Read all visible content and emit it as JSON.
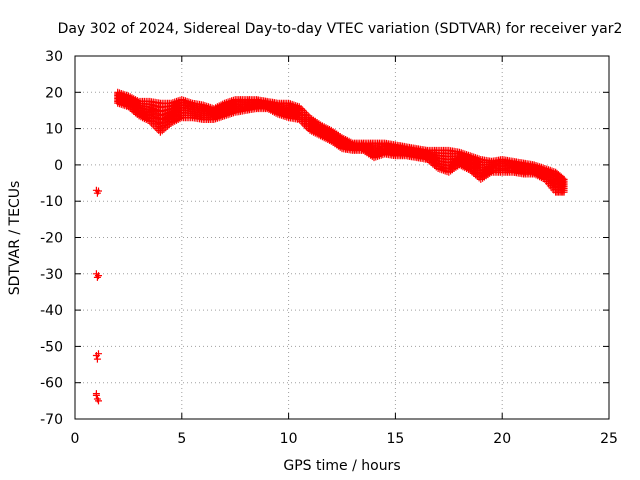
{
  "chart_data": {
    "type": "scatter",
    "title": "Day 302 of 2024, Sidereal Day-to-day VTEC variation (SDTVAR) for receiver yar2",
    "xlabel": "GPS time / hours",
    "ylabel": "SDTVAR / TECUs",
    "xlim": [
      0,
      25
    ],
    "ylim": [
      -70,
      30
    ],
    "x_ticks": [
      0,
      5,
      10,
      15,
      20,
      25
    ],
    "y_ticks": [
      30,
      20,
      10,
      0,
      -10,
      -20,
      -30,
      -40,
      -50,
      -60,
      -70
    ],
    "x_tick_labels": [
      "0",
      "5",
      "10",
      "15",
      "20",
      "25"
    ],
    "y_tick_labels": [
      "30",
      "20",
      "10",
      "0",
      "-10",
      "-20",
      "-30",
      "-40",
      "-50",
      "-60",
      "-70"
    ],
    "grid": true,
    "marker": "plus",
    "marker_color": "#ff0000",
    "series": [
      {
        "name": "SDTVAR",
        "points": [
          [
            1.0,
            -7.0
          ],
          [
            1.05,
            -7.8
          ],
          [
            1.1,
            -7.2
          ],
          [
            1.0,
            -30.0
          ],
          [
            1.05,
            -31.0
          ],
          [
            1.1,
            -30.5
          ],
          [
            1.0,
            -52.5
          ],
          [
            1.05,
            -53.5
          ],
          [
            1.1,
            -52.0
          ],
          [
            1.0,
            -63.5
          ],
          [
            1.05,
            -64.5
          ],
          [
            1.1,
            -65.0
          ],
          [
            1.0,
            -63.0
          ]
        ],
        "band": [
          [
            2.0,
            20.0,
            17.0
          ],
          [
            2.5,
            19.0,
            16.0
          ],
          [
            3.0,
            17.5,
            13.5
          ],
          [
            3.5,
            17.5,
            12.0
          ],
          [
            4.0,
            17.0,
            9.0
          ],
          [
            4.5,
            17.0,
            11.5
          ],
          [
            5.0,
            18.0,
            13.0
          ],
          [
            5.5,
            17.0,
            13.0
          ],
          [
            6.0,
            16.5,
            12.5
          ],
          [
            6.5,
            15.5,
            12.5
          ],
          [
            7.0,
            17.0,
            13.5
          ],
          [
            7.5,
            18.0,
            14.5
          ],
          [
            8.0,
            18.0,
            15.0
          ],
          [
            8.5,
            18.0,
            15.5
          ],
          [
            9.0,
            17.5,
            15.5
          ],
          [
            9.5,
            17.0,
            14.0
          ],
          [
            10.0,
            17.0,
            13.0
          ],
          [
            10.5,
            16.0,
            12.5
          ],
          [
            11.0,
            13.0,
            9.5
          ],
          [
            11.5,
            11.0,
            8.0
          ],
          [
            12.0,
            9.5,
            6.5
          ],
          [
            12.5,
            7.5,
            4.5
          ],
          [
            13.0,
            6.0,
            4.0
          ],
          [
            13.5,
            6.0,
            4.0
          ],
          [
            14.0,
            6.0,
            2.0
          ],
          [
            14.5,
            6.0,
            3.0
          ],
          [
            15.0,
            5.5,
            2.5
          ],
          [
            15.5,
            5.0,
            2.5
          ],
          [
            16.0,
            4.5,
            2.0
          ],
          [
            16.5,
            4.0,
            1.5
          ],
          [
            17.0,
            4.0,
            -1.0
          ],
          [
            17.5,
            4.0,
            -2.0
          ],
          [
            18.0,
            3.5,
            0.0
          ],
          [
            18.5,
            2.5,
            -1.5
          ],
          [
            19.0,
            1.5,
            -4.0
          ],
          [
            19.5,
            1.0,
            -2.0
          ],
          [
            20.0,
            1.5,
            -2.0
          ],
          [
            20.5,
            1.0,
            -2.0
          ],
          [
            21.0,
            0.5,
            -2.5
          ],
          [
            21.5,
            0.0,
            -2.5
          ],
          [
            22.0,
            -1.0,
            -4.0
          ],
          [
            22.5,
            -2.0,
            -7.5
          ],
          [
            22.9,
            -4.0,
            -7.5
          ]
        ]
      }
    ]
  }
}
